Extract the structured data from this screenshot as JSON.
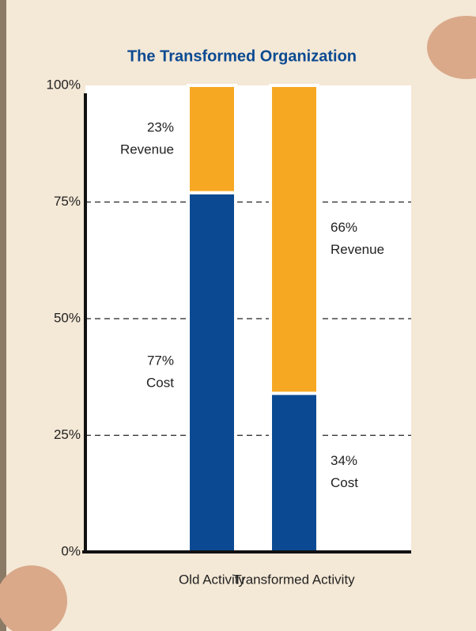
{
  "chart_data": {
    "type": "stacked_bar",
    "title": "The Transformed Organization",
    "categories": [
      "Old Activity",
      "Transformed Activity"
    ],
    "series": [
      {
        "name": "Cost",
        "color": "#0b4a92",
        "values": [
          77,
          34
        ],
        "value_labels": [
          "77%",
          "34%"
        ]
      },
      {
        "name": "Revenue",
        "color": "#f7a823",
        "values": [
          23,
          66
        ],
        "value_labels": [
          "23%",
          "66%"
        ]
      }
    ],
    "ylim": [
      0,
      100
    ],
    "yticks": [
      {
        "value": 0,
        "label": "0%"
      },
      {
        "value": 25,
        "label": "25%"
      },
      {
        "value": 50,
        "label": "50%"
      },
      {
        "value": 75,
        "label": "75%"
      },
      {
        "value": 100,
        "label": "100%"
      }
    ],
    "grid": true
  }
}
